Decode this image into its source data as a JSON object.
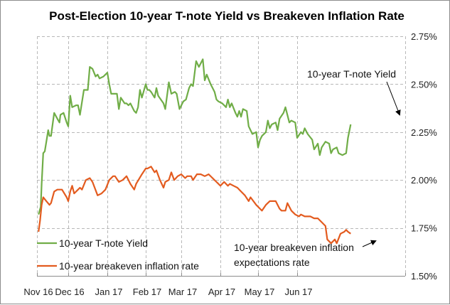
{
  "chart_data": {
    "type": "line",
    "title": "Post-Election 10-year T-note Yield vs Breakeven Inflation Rate",
    "xlabel": "",
    "ylabel": "",
    "y_axis_side": "right",
    "ylim": [
      1.5,
      2.75
    ],
    "y_ticks": [
      1.5,
      1.75,
      2.0,
      2.25,
      2.5,
      2.75
    ],
    "y_tick_labels": [
      "1.50%",
      "1.75%",
      "2.00%",
      "2.25%",
      "2.50%",
      "2.75%"
    ],
    "x_unit": "months since Nov 16",
    "xlim": [
      0,
      8.3
    ],
    "x_ticks": [
      0,
      1,
      2,
      3,
      4,
      5,
      6,
      7
    ],
    "x_tick_labels": [
      "Nov 16",
      "Dec 16",
      "Jan 17",
      "Feb 17",
      "Mar 17",
      "Apr 17",
      "May 17",
      "Jun 17"
    ],
    "grid": "dashed, both axes",
    "legend": {
      "placement": "bottom-left",
      "entries": [
        "10-year T-note Yield",
        "10-year breakeven inflation rate"
      ]
    },
    "series": [
      {
        "name": "10-year T-note Yield",
        "color": "#70ad47",
        "points": [
          [
            0.05,
            1.82
          ],
          [
            0.12,
            1.86
          ],
          [
            0.15,
            1.98
          ],
          [
            0.2,
            2.14
          ],
          [
            0.25,
            2.15
          ],
          [
            0.3,
            2.2
          ],
          [
            0.36,
            2.26
          ],
          [
            0.4,
            2.23
          ],
          [
            0.45,
            2.23
          ],
          [
            0.55,
            2.35
          ],
          [
            0.65,
            2.32
          ],
          [
            0.72,
            2.3
          ],
          [
            0.75,
            2.34
          ],
          [
            0.85,
            2.35
          ],
          [
            0.95,
            2.3
          ],
          [
            1.0,
            2.28
          ],
          [
            1.05,
            2.44
          ],
          [
            1.1,
            2.38
          ],
          [
            1.2,
            2.39
          ],
          [
            1.25,
            2.39
          ],
          [
            1.3,
            2.34
          ],
          [
            1.4,
            2.47
          ],
          [
            1.5,
            2.47
          ],
          [
            1.55,
            2.59
          ],
          [
            1.62,
            2.58
          ],
          [
            1.7,
            2.54
          ],
          [
            1.75,
            2.55
          ],
          [
            1.8,
            2.53
          ],
          [
            1.9,
            2.54
          ],
          [
            2.0,
            2.56
          ],
          [
            2.05,
            2.5
          ],
          [
            2.1,
            2.45
          ],
          [
            2.2,
            2.45
          ],
          [
            2.25,
            2.45
          ],
          [
            2.3,
            2.37
          ],
          [
            2.35,
            2.43
          ],
          [
            2.45,
            2.4
          ],
          [
            2.5,
            2.4
          ],
          [
            2.55,
            2.39
          ],
          [
            2.6,
            2.4
          ],
          [
            2.7,
            2.36
          ],
          [
            2.75,
            2.35
          ],
          [
            2.8,
            2.38
          ],
          [
            2.85,
            2.47
          ],
          [
            2.9,
            2.43
          ],
          [
            3.0,
            2.5
          ],
          [
            3.05,
            2.47
          ],
          [
            3.1,
            2.47
          ],
          [
            3.15,
            2.46
          ],
          [
            3.25,
            2.43
          ],
          [
            3.3,
            2.48
          ],
          [
            3.35,
            2.44
          ],
          [
            3.5,
            2.4
          ],
          [
            3.55,
            2.37
          ],
          [
            3.65,
            2.51
          ],
          [
            3.72,
            2.45
          ],
          [
            3.82,
            2.46
          ],
          [
            3.87,
            2.45
          ],
          [
            3.95,
            2.37
          ],
          [
            4.05,
            2.41
          ],
          [
            4.12,
            2.42
          ],
          [
            4.2,
            2.48
          ],
          [
            4.25,
            2.5
          ],
          [
            4.3,
            2.49
          ],
          [
            4.38,
            2.62
          ],
          [
            4.45,
            2.59
          ],
          [
            4.55,
            2.63
          ],
          [
            4.6,
            2.52
          ],
          [
            4.65,
            2.55
          ],
          [
            4.75,
            2.5
          ],
          [
            4.85,
            2.46
          ],
          [
            4.9,
            2.42
          ],
          [
            4.95,
            2.41
          ],
          [
            5.05,
            2.4
          ],
          [
            5.15,
            2.38
          ],
          [
            5.2,
            2.42
          ],
          [
            5.25,
            2.38
          ],
          [
            5.3,
            2.4
          ],
          [
            5.4,
            2.35
          ],
          [
            5.45,
            2.33
          ],
          [
            5.5,
            2.36
          ],
          [
            5.55,
            2.33
          ],
          [
            5.6,
            2.37
          ],
          [
            5.7,
            2.36
          ],
          [
            5.75,
            2.28
          ],
          [
            5.85,
            2.24
          ],
          [
            5.95,
            2.25
          ],
          [
            6.0,
            2.17
          ],
          [
            6.05,
            2.21
          ],
          [
            6.1,
            2.23
          ],
          [
            6.2,
            2.25
          ],
          [
            6.25,
            2.31
          ],
          [
            6.3,
            2.27
          ],
          [
            6.35,
            2.29
          ],
          [
            6.45,
            2.3
          ],
          [
            6.5,
            2.26
          ],
          [
            6.55,
            2.32
          ],
          [
            6.65,
            2.35
          ],
          [
            6.7,
            2.38
          ],
          [
            6.8,
            2.3
          ],
          [
            6.85,
            2.31
          ],
          [
            6.95,
            2.3
          ],
          [
            7.0,
            2.22
          ],
          [
            7.1,
            2.25
          ],
          [
            7.15,
            2.24
          ],
          [
            7.2,
            2.27
          ],
          [
            7.28,
            2.24
          ],
          [
            7.4,
            2.21
          ],
          [
            7.45,
            2.16
          ],
          [
            7.55,
            2.19
          ],
          [
            7.6,
            2.13
          ],
          [
            7.65,
            2.17
          ],
          [
            7.75,
            2.2
          ],
          [
            7.85,
            2.19
          ],
          [
            7.9,
            2.14
          ],
          [
            7.95,
            2.16
          ],
          [
            8.05,
            2.17
          ],
          [
            8.1,
            2.14
          ],
          [
            8.2,
            2.13
          ],
          [
            8.3,
            2.14
          ],
          [
            8.35,
            2.22
          ],
          [
            8.42,
            2.29
          ]
        ]
      },
      {
        "name": "10-year breakeven inflation rate",
        "color": "#e35b1f",
        "points": [
          [
            0.05,
            1.73
          ],
          [
            0.1,
            1.79
          ],
          [
            0.15,
            1.87
          ],
          [
            0.2,
            1.91
          ],
          [
            0.3,
            1.89
          ],
          [
            0.4,
            1.87
          ],
          [
            0.45,
            1.88
          ],
          [
            0.55,
            1.94
          ],
          [
            0.65,
            1.95
          ],
          [
            0.8,
            1.95
          ],
          [
            0.95,
            1.91
          ],
          [
            1.0,
            1.89
          ],
          [
            1.05,
            1.94
          ],
          [
            1.1,
            1.97
          ],
          [
            1.15,
            1.93
          ],
          [
            1.25,
            1.95
          ],
          [
            1.3,
            1.96
          ],
          [
            1.35,
            1.95
          ],
          [
            1.45,
            2.0
          ],
          [
            1.55,
            2.01
          ],
          [
            1.62,
            1.99
          ],
          [
            1.75,
            1.92
          ],
          [
            1.85,
            1.93
          ],
          [
            1.95,
            1.95
          ],
          [
            2.05,
            2.0
          ],
          [
            2.15,
            2.02
          ],
          [
            2.2,
            2.02
          ],
          [
            2.3,
            1.99
          ],
          [
            2.4,
            2.0
          ],
          [
            2.5,
            2.02
          ],
          [
            2.6,
            1.98
          ],
          [
            2.7,
            1.95
          ],
          [
            2.75,
            1.98
          ],
          [
            2.9,
            2.03
          ],
          [
            3.0,
            2.06
          ],
          [
            3.05,
            2.06
          ],
          [
            3.15,
            2.07
          ],
          [
            3.25,
            2.04
          ],
          [
            3.3,
            2.05
          ],
          [
            3.4,
            2.0
          ],
          [
            3.5,
            1.96
          ],
          [
            3.55,
            1.99
          ],
          [
            3.65,
            2.0
          ],
          [
            3.72,
            2.04
          ],
          [
            3.8,
            2.0
          ],
          [
            3.9,
            2.02
          ],
          [
            4.0,
            2.03
          ],
          [
            4.1,
            2.01
          ],
          [
            4.15,
            2.02
          ],
          [
            4.25,
            2.02
          ],
          [
            4.3,
            2.0
          ],
          [
            4.4,
            2.03
          ],
          [
            4.5,
            2.03
          ],
          [
            4.6,
            2.02
          ],
          [
            4.7,
            2.03
          ],
          [
            4.8,
            2.01
          ],
          [
            4.9,
            1.99
          ],
          [
            5.0,
            1.97
          ],
          [
            5.1,
            1.99
          ],
          [
            5.2,
            1.97
          ],
          [
            5.25,
            1.98
          ],
          [
            5.35,
            1.97
          ],
          [
            5.45,
            1.96
          ],
          [
            5.55,
            1.94
          ],
          [
            5.65,
            1.92
          ],
          [
            5.75,
            1.89
          ],
          [
            5.8,
            1.91
          ],
          [
            5.95,
            1.87
          ],
          [
            6.05,
            1.85
          ],
          [
            6.1,
            1.84
          ],
          [
            6.2,
            1.87
          ],
          [
            6.3,
            1.89
          ],
          [
            6.45,
            1.89
          ],
          [
            6.55,
            1.85
          ],
          [
            6.6,
            1.84
          ],
          [
            6.7,
            1.84
          ],
          [
            6.75,
            1.88
          ],
          [
            6.85,
            1.84
          ],
          [
            6.95,
            1.82
          ],
          [
            7.05,
            1.81
          ],
          [
            7.1,
            1.82
          ],
          [
            7.2,
            1.81
          ],
          [
            7.35,
            1.81
          ],
          [
            7.45,
            1.8
          ],
          [
            7.55,
            1.8
          ],
          [
            7.65,
            1.78
          ],
          [
            7.75,
            1.76
          ],
          [
            7.8,
            1.69
          ],
          [
            7.9,
            1.67
          ],
          [
            8.0,
            1.69
          ],
          [
            8.05,
            1.67
          ],
          [
            8.15,
            1.72
          ],
          [
            8.25,
            1.73
          ],
          [
            8.3,
            1.74
          ],
          [
            8.35,
            1.73
          ],
          [
            8.42,
            1.72
          ]
        ]
      }
    ],
    "annotations": [
      {
        "text": "10-year T-note Yield",
        "target_series": 0,
        "arrow": true
      },
      {
        "text_lines": [
          "10-year breakeven inflation",
          "expectations rate"
        ],
        "target_series": 1,
        "arrow": true
      }
    ]
  }
}
